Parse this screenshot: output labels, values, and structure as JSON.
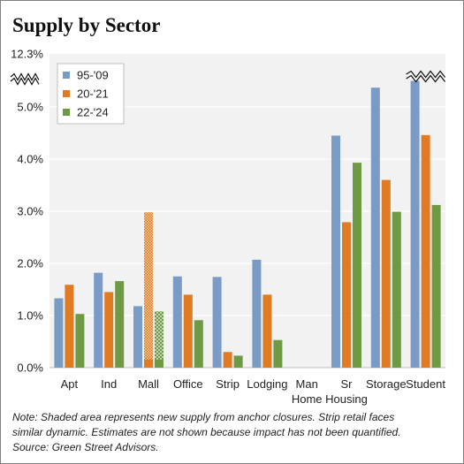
{
  "title": "Supply by Sector",
  "note": {
    "line1": "Note: Shaded area represents new supply from anchor closures. Strip retail faces",
    "line2": "similar dynamic. Estimates are not shown because impact has not been quantified.",
    "line3": "Source: Green Street Advisors."
  },
  "colors": {
    "s1": "#7b9bc7",
    "s2": "#e07b24",
    "s3": "#6e9a46",
    "plot_bg": "#f2f2f2",
    "grid": "#ffffff"
  },
  "chart_data": {
    "type": "bar",
    "title": "Supply by Sector",
    "categories": [
      [
        "Apt"
      ],
      [
        "Ind"
      ],
      [
        "Mall"
      ],
      [
        "Office"
      ],
      [
        "Strip"
      ],
      [
        "Lodging"
      ],
      [
        "Man",
        "Home"
      ],
      [
        "Sr",
        "Housing"
      ],
      [
        "Storage"
      ],
      [
        "Student"
      ]
    ],
    "series": [
      {
        "name": "95-'09",
        "values": [
          1.33,
          1.82,
          1.18,
          1.75,
          1.74,
          2.07,
          0,
          4.45,
          5.37,
          12.3
        ]
      },
      {
        "name": "20-'21",
        "values": [
          1.59,
          1.45,
          0.16,
          1.4,
          0.3,
          1.4,
          0,
          2.79,
          3.6,
          4.46
        ]
      },
      {
        "name": "22-'24",
        "values": [
          1.03,
          1.66,
          0.16,
          0.91,
          0.23,
          0.53,
          0,
          3.93,
          2.99,
          3.12
        ]
      }
    ],
    "shaded": [
      {
        "category": "Mall",
        "series": "20-'21",
        "from": 0.16,
        "to": 2.98
      },
      {
        "category": "Mall",
        "series": "22-'24",
        "from": 0.16,
        "to": 1.08
      }
    ],
    "axis_break": {
      "at": 5.5,
      "top_label_value": 12.3
    },
    "yticks": [
      "0.0%",
      "1.0%",
      "2.0%",
      "3.0%",
      "4.0%",
      "5.0%"
    ],
    "ytick_top": "12.3%",
    "ylim": [
      0,
      5.5
    ],
    "legend": "top-left",
    "grid": true
  }
}
